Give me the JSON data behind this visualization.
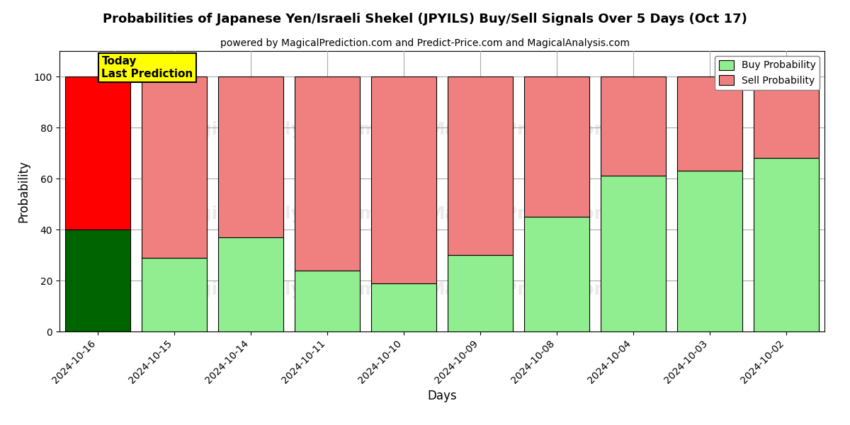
{
  "title": "Probabilities of Japanese Yen/Israeli Shekel (JPYILS) Buy/Sell Signals Over 5 Days (Oct 17)",
  "subtitle": "powered by MagicalPrediction.com and Predict-Price.com and MagicalAnalysis.com",
  "xlabel": "Days",
  "ylabel": "Probability",
  "categories": [
    "2024-10-16",
    "2024-10-15",
    "2024-10-14",
    "2024-10-11",
    "2024-10-10",
    "2024-10-09",
    "2024-10-08",
    "2024-10-04",
    "2024-10-03",
    "2024-10-02"
  ],
  "buy_values": [
    40,
    29,
    37,
    24,
    19,
    30,
    45,
    61,
    63,
    68
  ],
  "sell_values": [
    60,
    71,
    63,
    76,
    81,
    70,
    55,
    39,
    37,
    32
  ],
  "today_bar_index": 0,
  "buy_color_today": "#006400",
  "sell_color_today": "#FF0000",
  "buy_color_other": "#90EE90",
  "sell_color_other": "#F08080",
  "today_label_bg": "#FFFF00",
  "today_label_text": "Today\nLast Prediction",
  "legend_buy_label": "Buy Probability",
  "legend_sell_label": "Sell Probability",
  "ylim": [
    0,
    110
  ],
  "yticks": [
    0,
    20,
    40,
    60,
    80,
    100
  ],
  "dashed_line_y": 110,
  "background_color": "#ffffff",
  "grid_color": "#aaaaaa"
}
